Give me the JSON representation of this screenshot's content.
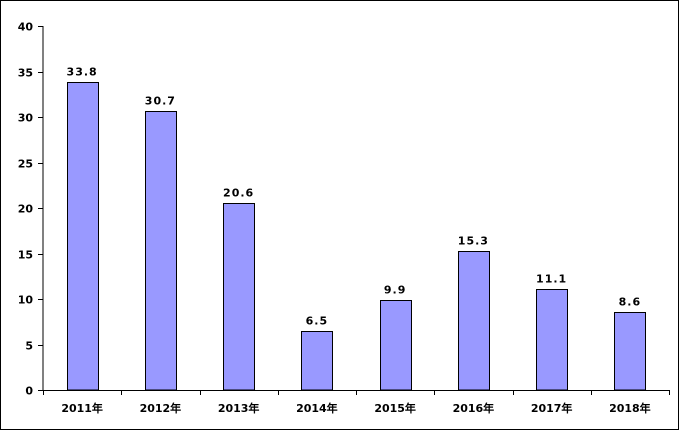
{
  "chart_data": {
    "type": "bar",
    "categories": [
      "2011年",
      "2012年",
      "2013年",
      "2014年",
      "2015年",
      "2016年",
      "2017年",
      "2018年"
    ],
    "values": [
      33.8,
      30.7,
      20.6,
      6.5,
      9.9,
      15.3,
      11.1,
      8.6
    ],
    "value_labels": [
      "33.8",
      "30.7",
      "20.6",
      "6.5",
      "9.9",
      "15.3",
      "11.1",
      "8.6"
    ],
    "title": "",
    "xlabel": "",
    "ylabel": "",
    "ylim": [
      0,
      40
    ],
    "yticks": [
      0,
      5,
      10,
      15,
      20,
      25,
      30,
      35,
      40
    ],
    "ytick_labels": [
      "0",
      "5",
      "10",
      "15",
      "20",
      "25",
      "30",
      "35",
      "40"
    ],
    "grid": false,
    "legend": "none",
    "bar_color": "#9999ff",
    "bar_edge_color": "#000000"
  }
}
